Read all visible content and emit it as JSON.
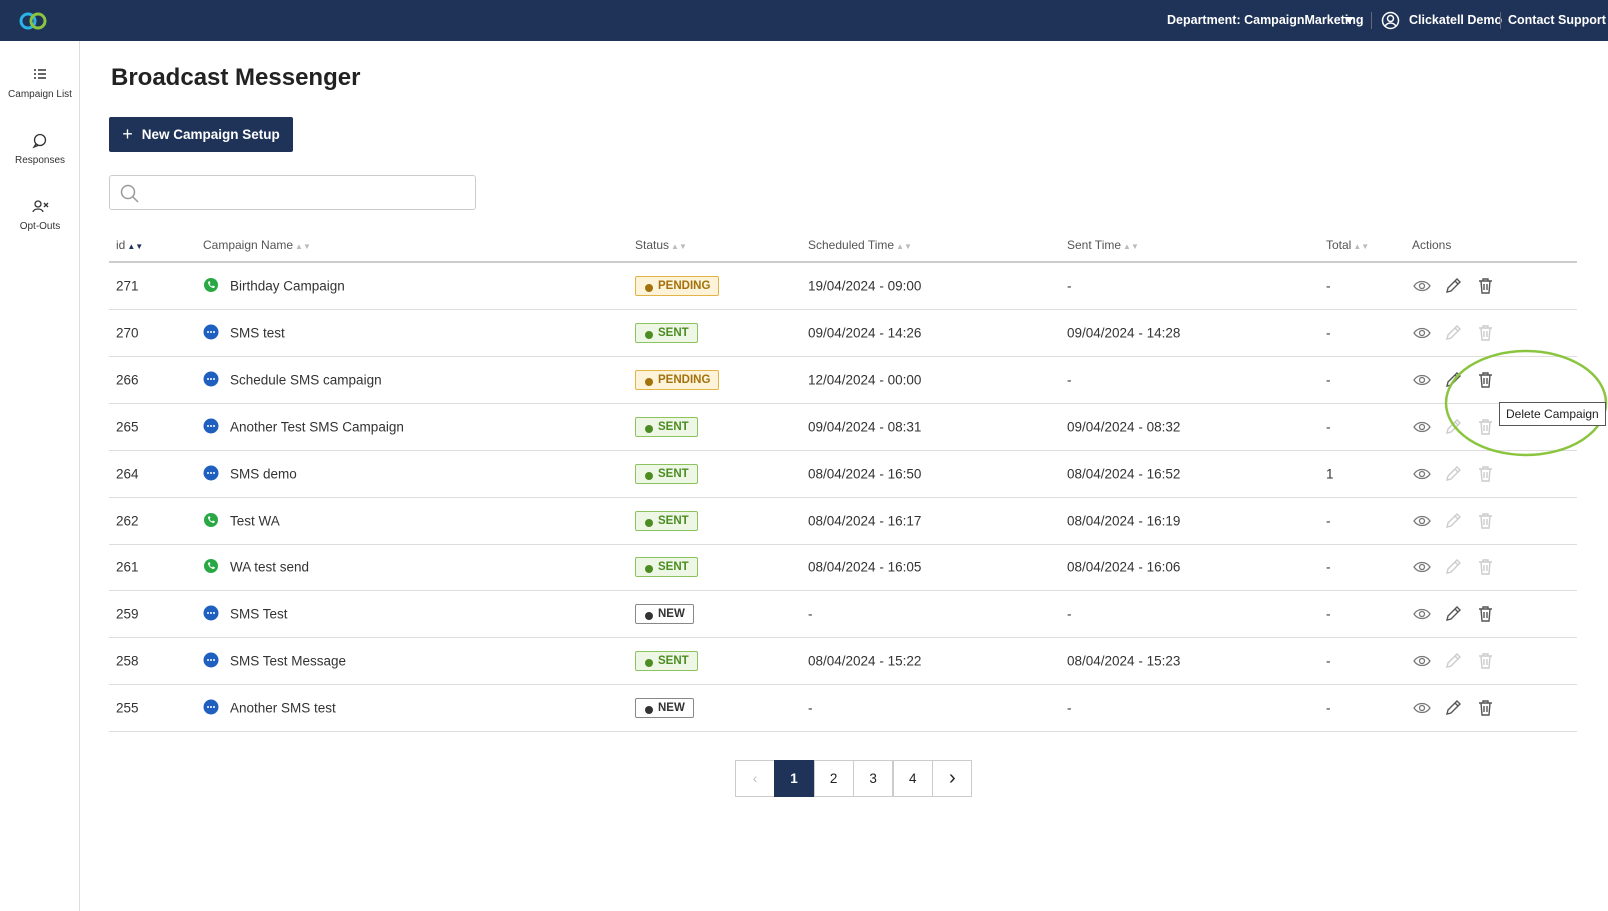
{
  "header": {
    "department": "Department: CampaignMarketing",
    "user": "Clickatell Demo",
    "support": "Contact Support"
  },
  "sidebar": [
    {
      "label": "Campaign List"
    },
    {
      "label": "Responses"
    },
    {
      "label": "Opt-Outs"
    }
  ],
  "page": {
    "title": "Broadcast Messenger",
    "new_button": "New Campaign Setup"
  },
  "table": {
    "columns": [
      "id",
      "Campaign Name",
      "Status",
      "Scheduled Time",
      "Sent Time",
      "Total",
      "Actions"
    ],
    "rows": [
      {
        "id": 271,
        "channel": "whatsapp",
        "name": "Birthday Campaign",
        "status": "PENDING",
        "scheduled": "19/04/2024 - 09:00",
        "sent": "-",
        "total": "-"
      },
      {
        "id": 270,
        "channel": "sms",
        "name": "SMS test",
        "status": "SENT",
        "scheduled": "09/04/2024 - 14:26",
        "sent": "09/04/2024 - 14:28",
        "total": "-"
      },
      {
        "id": 266,
        "channel": "sms",
        "name": "Schedule SMS campaign",
        "status": "PENDING",
        "scheduled": "12/04/2024 - 00:00",
        "sent": "-",
        "total": "-"
      },
      {
        "id": 265,
        "channel": "sms",
        "name": "Another Test SMS Campaign",
        "status": "SENT",
        "scheduled": "09/04/2024 - 08:31",
        "sent": "09/04/2024 - 08:32",
        "total": "-"
      },
      {
        "id": 264,
        "channel": "sms",
        "name": "SMS demo",
        "status": "SENT",
        "scheduled": "08/04/2024 - 16:50",
        "sent": "08/04/2024 - 16:52",
        "total": "1"
      },
      {
        "id": 262,
        "channel": "whatsapp",
        "name": "Test WA",
        "status": "SENT",
        "scheduled": "08/04/2024 - 16:17",
        "sent": "08/04/2024 - 16:19",
        "total": "-"
      },
      {
        "id": 261,
        "channel": "whatsapp",
        "name": "WA test send",
        "status": "SENT",
        "scheduled": "08/04/2024 - 16:05",
        "sent": "08/04/2024 - 16:06",
        "total": "-"
      },
      {
        "id": 259,
        "channel": "sms",
        "name": "SMS Test",
        "status": "NEW",
        "scheduled": "-",
        "sent": "-",
        "total": "-"
      },
      {
        "id": 258,
        "channel": "sms",
        "name": "SMS Test Message",
        "status": "SENT",
        "scheduled": "08/04/2024 - 15:22",
        "sent": "08/04/2024 - 15:23",
        "total": "-"
      },
      {
        "id": 255,
        "channel": "sms",
        "name": "Another SMS test",
        "status": "NEW",
        "scheduled": "-",
        "sent": "-",
        "total": "-"
      }
    ]
  },
  "pagination": {
    "pages": [
      1,
      2,
      3,
      4
    ],
    "current": 1
  },
  "tooltip": "Delete Campaign"
}
